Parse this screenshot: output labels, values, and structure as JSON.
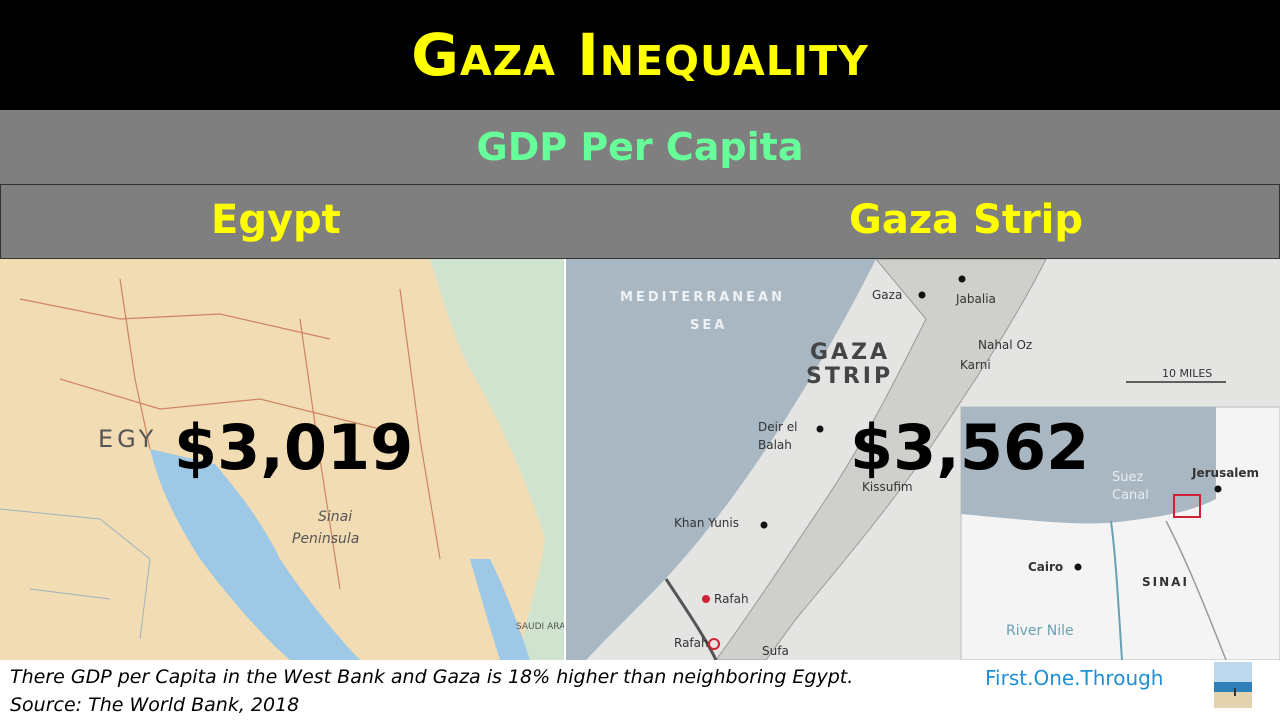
{
  "header": {
    "title": "Gaza Inequality"
  },
  "subheader": {
    "title": "GDP Per Capita"
  },
  "columns": [
    {
      "label": "Egypt",
      "value": "$3,019"
    },
    {
      "label": "Gaza Strip",
      "value": "$3,562"
    }
  ],
  "egypt_map": {
    "labels": {
      "country": "EGY",
      "sinai": "Sinai",
      "peninsula": "Peninsula",
      "saudi": "SAUDI ARABIA"
    },
    "colors": {
      "land": "#f2dcb3",
      "sea": "#9ec9e6"
    }
  },
  "gaza_map": {
    "labels": {
      "sea1": "MEDITERRANEAN",
      "sea2": "SEA",
      "strip1": "GAZA",
      "strip2": "STRIP",
      "gaza": "Gaza",
      "jabalia": "Jabalia",
      "nahal_oz": "Nahal Oz",
      "karni": "Karni",
      "deir1": "Deir el",
      "deir2": "Balah",
      "kissufim": "Kissufim",
      "khan_yunis": "Khan Yunis",
      "rafah1": "Rafah",
      "rafah2": "Rafah",
      "sufa": "Sufa",
      "scale": "10 MILES",
      "suez1": "Suez",
      "suez2": "Canal",
      "jerusalem": "Jerusalem",
      "cairo": "Cairo",
      "sinai": "SINAI",
      "river": "River Nile"
    },
    "colors": {
      "land": "#e4e4e2",
      "sea": "#a9b7c2",
      "strip": "#cfcfcc",
      "accent": "#cc2233"
    }
  },
  "footer": {
    "note": "There GDP per Capita in the West Bank and Gaza is 18% higher than neighboring Egypt.",
    "source": "Source: The World Bank, 2018",
    "brand": "First.One.Through"
  }
}
